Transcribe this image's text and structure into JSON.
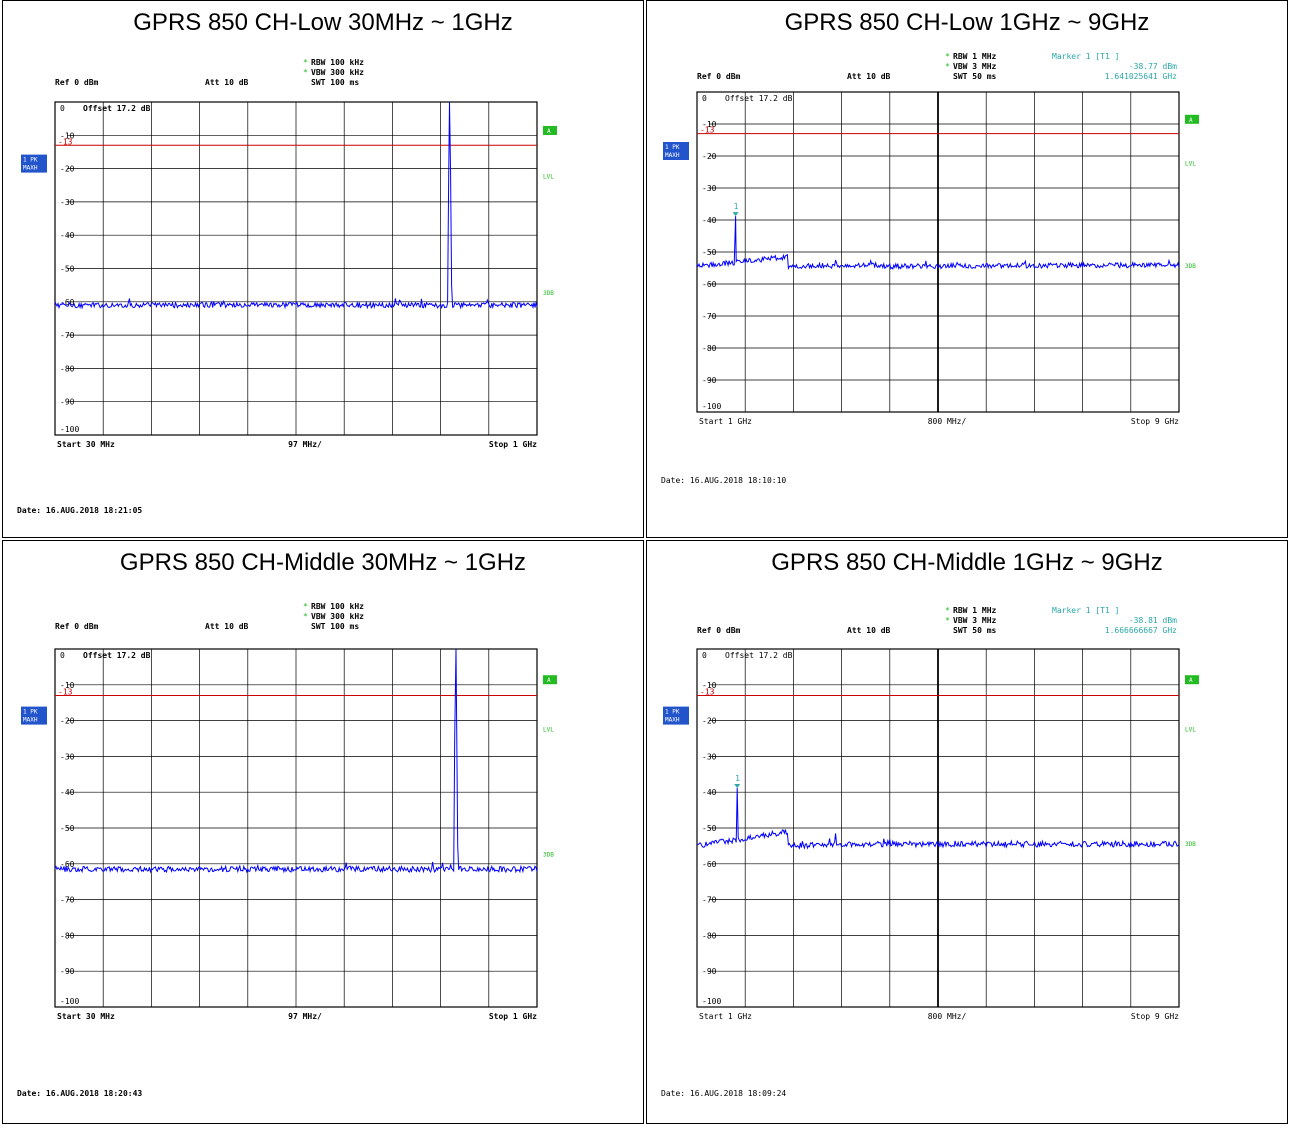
{
  "panels": [
    {
      "title": "GPRS 850 CH-Low 30MHz ~ 1GHz",
      "ref": "Ref   0 dBm",
      "att": "Att   10 dB",
      "rbw": "RBW  100 kHz",
      "vbw": "VBW  300 kHz",
      "swt": "SWT  100 ms",
      "offset": "Offset   17.2 dB",
      "start": "Start  30 MHz",
      "span_div": "97 MHz/",
      "stop": "Stop  1 GHz",
      "date": "Date: 16.AUG.2018  18:21:05",
      "trace_badge": [
        "1 PK",
        "MAXH"
      ],
      "limit_label": "-13",
      "side_labels": {
        "a": "A",
        "lvl": "LVL",
        "sdb": "3DB"
      },
      "marker": null,
      "colors": {
        "trace": "#0000ff",
        "limit": "#cc0000",
        "marker_text": "#2aa7a7",
        "side": "#22bb22"
      },
      "chart_data": {
        "type": "line",
        "xlim": [
          30,
          1000
        ],
        "x_unit": "MHz",
        "ylim": [
          -100,
          0
        ],
        "y_ticks": [
          0,
          -10,
          -20,
          -30,
          -40,
          -50,
          -60,
          -70,
          -80,
          -90,
          -100
        ],
        "y_tick_labels": [
          "0",
          "-10",
          "-20",
          "-30",
          "-40",
          "-50",
          "-60",
          "-70",
          "-80",
          "-90",
          "-100"
        ],
        "limit_line": -13,
        "grid": true,
        "noise_floor": -61,
        "peaks": [
          {
            "x": 824,
            "y": 0
          },
          {
            "x": 180,
            "y": -59
          },
          {
            "x": 715,
            "y": -59
          },
          {
            "x": 900,
            "y": -59.5
          }
        ]
      }
    },
    {
      "title": "GPRS 850 CH-Low 1GHz ~ 9GHz",
      "ref": "Ref   0 dBm",
      "att": "Att   10 dB",
      "rbw": "RBW  1 MHz",
      "vbw": "VBW  3 MHz",
      "swt": "SWT  50 ms",
      "offset": "Offset   17.2 dB",
      "start": "Start  1 GHz",
      "span_div": "800 MHz/",
      "stop": "Stop  9 GHz",
      "date": "Date: 16.AUG.2018  18:10:10",
      "trace_badge": [
        "1 PK",
        "MAXH"
      ],
      "limit_label": "-13",
      "side_labels": {
        "a": "A",
        "lvl": "LVL",
        "sdb": "3DB"
      },
      "marker": {
        "label": "Marker 1 [T1 ]",
        "level": "-38.77 dBm",
        "freq": "1.641025641 GHz",
        "num": "1",
        "x": 1.641,
        "y": -38.77
      },
      "colors": {
        "trace": "#0000ff",
        "limit": "#cc0000",
        "marker_text": "#2aa7a7",
        "side": "#22bb22"
      },
      "chart_data": {
        "type": "line",
        "xlim": [
          1,
          9
        ],
        "x_unit": "GHz",
        "ylim": [
          -100,
          0
        ],
        "y_ticks": [
          0,
          -10,
          -20,
          -30,
          -40,
          -50,
          -60,
          -70,
          -80,
          -90,
          -100
        ],
        "y_tick_labels": [
          "0",
          "-10",
          "-20",
          "-30",
          "-40",
          "-50",
          "-60",
          "-70",
          "-80",
          "-90",
          "-100"
        ],
        "limit_line": -13,
        "grid": true,
        "floor_segments": [
          {
            "x0": 1.0,
            "x1": 2.5,
            "y0": -54.5,
            "y1": -51.5
          },
          {
            "x0": 2.5,
            "x1": 4.0,
            "y0": -54.5,
            "y1": -54.0
          },
          {
            "x0": 4.0,
            "x1": 9.0,
            "y0": -54.5,
            "y1": -54.0
          }
        ],
        "peaks": [
          {
            "x": 1.641,
            "y": -38.77
          },
          {
            "x": 3.3,
            "y": -52.5
          }
        ]
      }
    },
    {
      "title": "GPRS 850 CH-Middle 30MHz ~ 1GHz",
      "ref": "Ref   0 dBm",
      "att": "Att   10 dB",
      "rbw": "RBW  100 kHz",
      "vbw": "VBW  300 kHz",
      "swt": "SWT  100 ms",
      "offset": "Offset   17.2 dB",
      "start": "Start  30 MHz",
      "span_div": "97 MHz/",
      "stop": "Stop  1 GHz",
      "date": "Date: 16.AUG.2018  18:20:43",
      "trace_badge": [
        "1 PK",
        "MAXH"
      ],
      "limit_label": "-13",
      "side_labels": {
        "a": "A",
        "lvl": "LVL",
        "sdb": "3DB"
      },
      "marker": null,
      "colors": {
        "trace": "#0000ff",
        "limit": "#cc0000",
        "marker_text": "#2aa7a7",
        "side": "#22bb22"
      },
      "chart_data": {
        "type": "line",
        "xlim": [
          30,
          1000
        ],
        "x_unit": "MHz",
        "ylim": [
          -100,
          0
        ],
        "y_ticks": [
          0,
          -10,
          -20,
          -30,
          -40,
          -50,
          -60,
          -70,
          -80,
          -90,
          -100
        ],
        "y_tick_labels": [
          "0",
          "-10",
          "-20",
          "-30",
          "-40",
          "-50",
          "-60",
          "-70",
          "-80",
          "-90",
          "-100"
        ],
        "limit_line": -13,
        "grid": true,
        "noise_floor": -61.5,
        "peaks": [
          {
            "x": 837,
            "y": 0
          },
          {
            "x": 790,
            "y": -59.5
          }
        ]
      }
    },
    {
      "title": "GPRS 850 CH-Middle 1GHz ~ 9GHz",
      "ref": "Ref   0 dBm",
      "att": "Att   10 dB",
      "rbw": "RBW  1 MHz",
      "vbw": "VBW  3 MHz",
      "swt": "SWT  50 ms",
      "offset": "Offset   17.2 dB",
      "start": "Start  1 GHz",
      "span_div": "800 MHz/",
      "stop": "Stop  9 GHz",
      "date": "Date: 16.AUG.2018  18:09:24",
      "trace_badge": [
        "1 PK",
        "MAXH"
      ],
      "limit_label": "-13",
      "side_labels": {
        "a": "A",
        "lvl": "LVL",
        "sdb": "3DB"
      },
      "marker": {
        "label": "Marker 1 [T1 ]",
        "level": "-38.81 dBm",
        "freq": "1.666666667 GHz",
        "num": "1",
        "x": 1.667,
        "y": -38.81
      },
      "colors": {
        "trace": "#0000ff",
        "limit": "#cc0000",
        "marker_text": "#2aa7a7",
        "side": "#22bb22"
      },
      "chart_data": {
        "type": "line",
        "xlim": [
          1,
          9
        ],
        "x_unit": "GHz",
        "ylim": [
          -100,
          0
        ],
        "y_ticks": [
          0,
          -10,
          -20,
          -30,
          -40,
          -50,
          -60,
          -70,
          -80,
          -90,
          -100
        ],
        "y_tick_labels": [
          "0",
          "-10",
          "-20",
          "-30",
          "-40",
          "-50",
          "-60",
          "-70",
          "-80",
          "-90",
          "-100"
        ],
        "limit_line": -13,
        "grid": true,
        "floor_segments": [
          {
            "x0": 1.0,
            "x1": 2.5,
            "y0": -55.0,
            "y1": -51.0
          },
          {
            "x0": 2.5,
            "x1": 4.0,
            "y0": -55.0,
            "y1": -54.5
          },
          {
            "x0": 4.0,
            "x1": 9.0,
            "y0": -54.5,
            "y1": -54.5
          }
        ],
        "peaks": [
          {
            "x": 1.667,
            "y": -38.81
          },
          {
            "x": 3.3,
            "y": -51.5
          },
          {
            "x": 4.1,
            "y": -53
          }
        ]
      }
    }
  ]
}
